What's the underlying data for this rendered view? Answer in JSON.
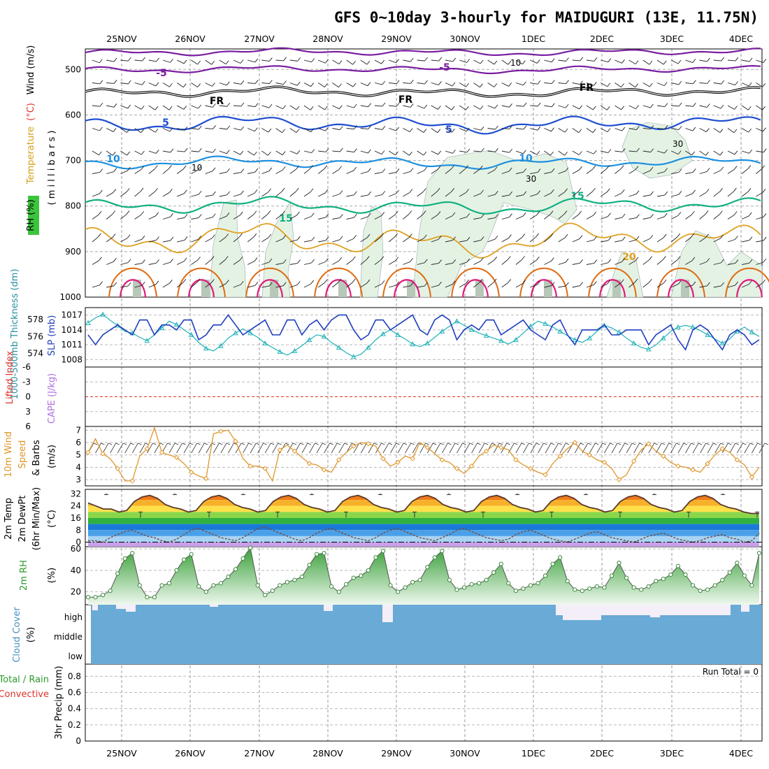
{
  "title": "GFS 0~10day 3-hourly for MAIDUGURI (13E, 11.75N)",
  "dates": [
    "25NOV",
    "26NOV",
    "27NOV",
    "28NOV",
    "29NOV",
    "30NOV",
    "1DEC",
    "2DEC",
    "3DEC",
    "4DEC"
  ],
  "panels": {
    "upper": {
      "labels": [
        {
          "text": "RH (%)",
          "color": "#000000"
        },
        {
          "text": "Temperature",
          "color": "#d4a017"
        },
        {
          "text": "(°C)",
          "color": "#e0332a"
        },
        {
          "text": "Wind (m/s)",
          "color": "#000000"
        },
        {
          "text": "( m i l l i b a r s )",
          "color": "#000000"
        }
      ],
      "y_ticks": [
        "500",
        "600",
        "700",
        "800",
        "900",
        "1000"
      ],
      "contour_labels": {
        "m5": "-5",
        "fr": "FR",
        "p5": "5",
        "p10": "10",
        "p15": "15",
        "p20": "20",
        "rh10": "10",
        "rh30": "30"
      }
    },
    "thickness": {
      "label_thickness": "1000-500mb Thickness (dm)",
      "label_slp": "SLP (mb)",
      "left_ticks": [
        "578",
        "576",
        "574"
      ],
      "right_ticks": [
        "1017",
        "1014",
        "1011",
        "1008"
      ]
    },
    "cape": {
      "label_li": "Lifted Index",
      "label_cape": "CAPE (J/kg)",
      "ticks": [
        "-6",
        "-3",
        "0",
        "3",
        "6"
      ]
    },
    "wind10": {
      "label_a": "10m Wind",
      "label_b": "Speed",
      "label_c": "& Barbs",
      "units": "(m/s)",
      "ticks": [
        "7",
        "6",
        "5",
        "4",
        "3"
      ]
    },
    "temp2m": {
      "label_a": "2m Temp",
      "label_b": "2m DewPt",
      "label_c": "(6hr Min/Max)",
      "units": "(°C)",
      "ticks": [
        "32",
        "24",
        "16",
        "8",
        "0"
      ]
    },
    "rh2m": {
      "label": "2m RH",
      "units": "(%)",
      "ticks": [
        "60",
        "40",
        "20"
      ]
    },
    "cloud": {
      "label": "Cloud Cover",
      "units": "(%)",
      "levels": [
        "high",
        "middle",
        "low"
      ]
    },
    "precip": {
      "label_a": "Total / Rain",
      "label_b": "Convective",
      "label_c": "3hr Precip (mm)",
      "ticks": [
        "0.8",
        "0.6",
        "0.4",
        "0.2",
        "0"
      ],
      "run_total": "Run Total = 0"
    }
  },
  "colors": {
    "slp": "#1f3fbf",
    "thickness": "#20b2b8",
    "t_minus5": "#7a1fa0",
    "t_fr": "#000000",
    "t_5": "#1f4fd0",
    "t_10": "#1e90e0",
    "t_15": "#10b080",
    "t_20": "#e0a020",
    "t_25": "#e06a10",
    "t_30": "#e01a7a",
    "rh_fill": "#e4f2e4",
    "wind10": "#e0962a",
    "rh2m": "#4ab84a",
    "cloud": "#6aaad6",
    "li_zero": "#e0332a"
  },
  "chart_data": [
    {
      "type": "line",
      "panel": "thickness",
      "series": [
        {
          "name": "SLP (mb)",
          "unit": "mb",
          "values": [
            1013,
            1011,
            1013,
            1014,
            1015,
            1014,
            1013,
            1016,
            1016,
            1013,
            1015,
            1015,
            1014,
            1016,
            1016,
            1012,
            1013,
            1015,
            1015,
            1017,
            1015,
            1013,
            1014,
            1015,
            1016,
            1013,
            1013,
            1016,
            1016,
            1013,
            1015,
            1016,
            1014,
            1016,
            1017,
            1017,
            1014,
            1012,
            1013,
            1016,
            1016,
            1014,
            1015,
            1016,
            1017,
            1014,
            1013,
            1016,
            1017,
            1016,
            1012,
            1014,
            1015,
            1014,
            1016,
            1016,
            1013,
            1014,
            1015,
            1016,
            1014,
            1013,
            1012,
            1015,
            1016,
            1013,
            1011,
            1014,
            1014,
            1014,
            1015,
            1013,
            1013,
            1014,
            1014,
            1014,
            1011,
            1013,
            1014,
            1015,
            1012,
            1010,
            1014,
            1015,
            1014,
            1012,
            1010,
            1013,
            1014,
            1013,
            1011,
            1012
          ]
        },
        {
          "name": "1000-500mb Thickness (dm)",
          "unit": "dm",
          "values": [
            577.6,
            578.2,
            578.6,
            577.9,
            577.3,
            576.6,
            576.4,
            575.9,
            575.5,
            576.2,
            577.0,
            577.8,
            577.4,
            576.8,
            576.2,
            575.3,
            574.6,
            574.3,
            574.9,
            575.8,
            576.4,
            576.9,
            576.4,
            575.9,
            575.2,
            574.7,
            574.2,
            573.8,
            574.3,
            574.9,
            575.6,
            576.2,
            576.0,
            575.3,
            574.7,
            574.1,
            573.6,
            573.9,
            574.7,
            575.6,
            576.3,
            576.8,
            576.2,
            575.7,
            575.1,
            574.8,
            575.2,
            575.9,
            576.6,
            577.2,
            577.8,
            577.3,
            576.8,
            576.4,
            576.1,
            575.8,
            575.5,
            575.1,
            575.6,
            576.4,
            577.2,
            577.8,
            577.5,
            577.1,
            576.6,
            576.1,
            575.6,
            575.3,
            575.8,
            576.6,
            577.3,
            577.0,
            576.5,
            575.8,
            575.2,
            574.7,
            574.5,
            575.0,
            575.8,
            576.6,
            577.1,
            577.3,
            577.1,
            576.7,
            576.2,
            575.7,
            575.2,
            575.7,
            576.6,
            577.1,
            576.5,
            576.0
          ]
        }
      ]
    },
    {
      "type": "line",
      "panel": "wind10",
      "ylabel": "(m/s)",
      "ylim": [
        2.5,
        7.3
      ],
      "values": [
        5.2,
        6.3,
        5.1,
        4.7,
        3.9,
        2.9,
        2.9,
        4.9,
        5.5,
        7.2,
        5.2,
        5.0,
        4.8,
        4.3,
        3.6,
        3.3,
        3.1,
        6.7,
        6.9,
        7.0,
        6.1,
        4.7,
        4.1,
        4.1,
        3.9,
        2.9,
        5.4,
        5.8,
        5.3,
        4.8,
        4.3,
        4.2,
        3.8,
        3.6,
        4.6,
        5.2,
        5.7,
        6.0,
        5.9,
        5.7,
        4.7,
        4.1,
        4.4,
        4.9,
        4.7,
        6.0,
        5.6,
        5.1,
        4.6,
        4.4,
        3.9,
        3.5,
        4.1,
        4.9,
        5.3,
        5.8,
        5.6,
        5.4,
        4.6,
        4.2,
        3.9,
        3.6,
        3.4,
        4.3,
        4.9,
        5.5,
        6.0,
        5.3,
        5.0,
        4.6,
        4.4,
        3.9,
        3.0,
        3.4,
        4.5,
        5.4,
        5.9,
        5.3,
        4.9,
        4.4,
        4.1,
        4.0,
        3.8,
        3.6,
        4.3,
        5.0,
        5.5,
        5.2,
        4.6,
        4.2,
        3.2,
        4.0
      ]
    },
    {
      "type": "area",
      "panel": "temp2m",
      "ylabel": "(°C)",
      "ylim": [
        -3,
        35
      ],
      "series": [
        {
          "name": "2m Temp",
          "unit": "°C",
          "values": [
            26,
            24,
            22,
            22,
            20,
            21,
            27,
            30,
            31,
            29,
            25,
            23,
            22,
            20,
            21,
            27,
            30,
            31,
            29,
            25,
            23,
            22,
            20,
            21,
            27,
            30,
            31,
            29,
            25,
            23,
            22,
            20,
            21,
            27,
            30,
            31,
            29,
            25,
            23,
            22,
            20,
            21,
            27,
            30,
            31,
            29,
            25,
            23,
            22,
            20,
            21,
            27,
            30,
            31,
            29,
            25,
            23,
            22,
            20,
            21,
            27,
            30,
            31,
            29,
            25,
            23,
            22,
            20,
            21,
            27,
            30,
            31,
            29,
            25,
            23,
            22,
            20,
            21,
            27,
            30,
            31,
            29,
            25,
            23,
            22,
            20,
            19,
            19
          ]
        },
        {
          "name": "2m DewPt",
          "unit": "°C",
          "values": [
            1,
            1,
            0,
            3,
            5,
            7,
            8,
            6,
            4,
            3,
            1,
            0,
            2,
            5,
            8,
            9,
            7,
            5,
            3,
            2,
            1,
            3,
            6,
            9,
            10,
            8,
            6,
            4,
            2,
            1,
            3,
            6,
            8,
            9,
            7,
            5,
            3,
            2,
            1,
            3,
            6,
            8,
            9,
            7,
            5,
            3,
            2,
            1,
            3,
            5,
            8,
            9,
            7,
            5,
            3,
            2,
            1,
            2,
            5,
            7,
            8,
            6,
            4,
            2,
            1,
            0,
            2,
            4,
            6,
            7,
            5,
            3,
            2,
            1,
            0,
            2,
            4,
            5,
            6,
            4,
            2,
            1,
            0,
            1,
            3,
            4,
            5,
            3,
            2,
            0,
            1,
            6
          ]
        }
      ]
    },
    {
      "type": "area",
      "panel": "rh2m",
      "ylabel": "(%)",
      "ylim": [
        8,
        62
      ],
      "values": [
        15,
        15,
        17,
        21,
        37,
        51,
        56,
        26,
        15,
        15,
        26,
        28,
        40,
        50,
        55,
        25,
        20,
        26,
        28,
        34,
        41,
        51,
        61,
        26,
        17,
        21,
        26,
        29,
        31,
        34,
        45,
        55,
        56,
        25,
        20,
        27,
        33,
        35,
        40,
        52,
        58,
        26,
        20,
        24,
        29,
        31,
        43,
        52,
        58,
        31,
        22,
        24,
        27,
        28,
        31,
        38,
        46,
        28,
        21,
        23,
        26,
        28,
        35,
        46,
        52,
        30,
        22,
        21,
        23,
        25,
        24,
        35,
        47,
        33,
        24,
        22,
        25,
        30,
        32,
        36,
        44,
        36,
        26,
        21,
        22,
        26,
        31,
        38,
        47,
        35,
        26,
        56
      ]
    }
  ]
}
